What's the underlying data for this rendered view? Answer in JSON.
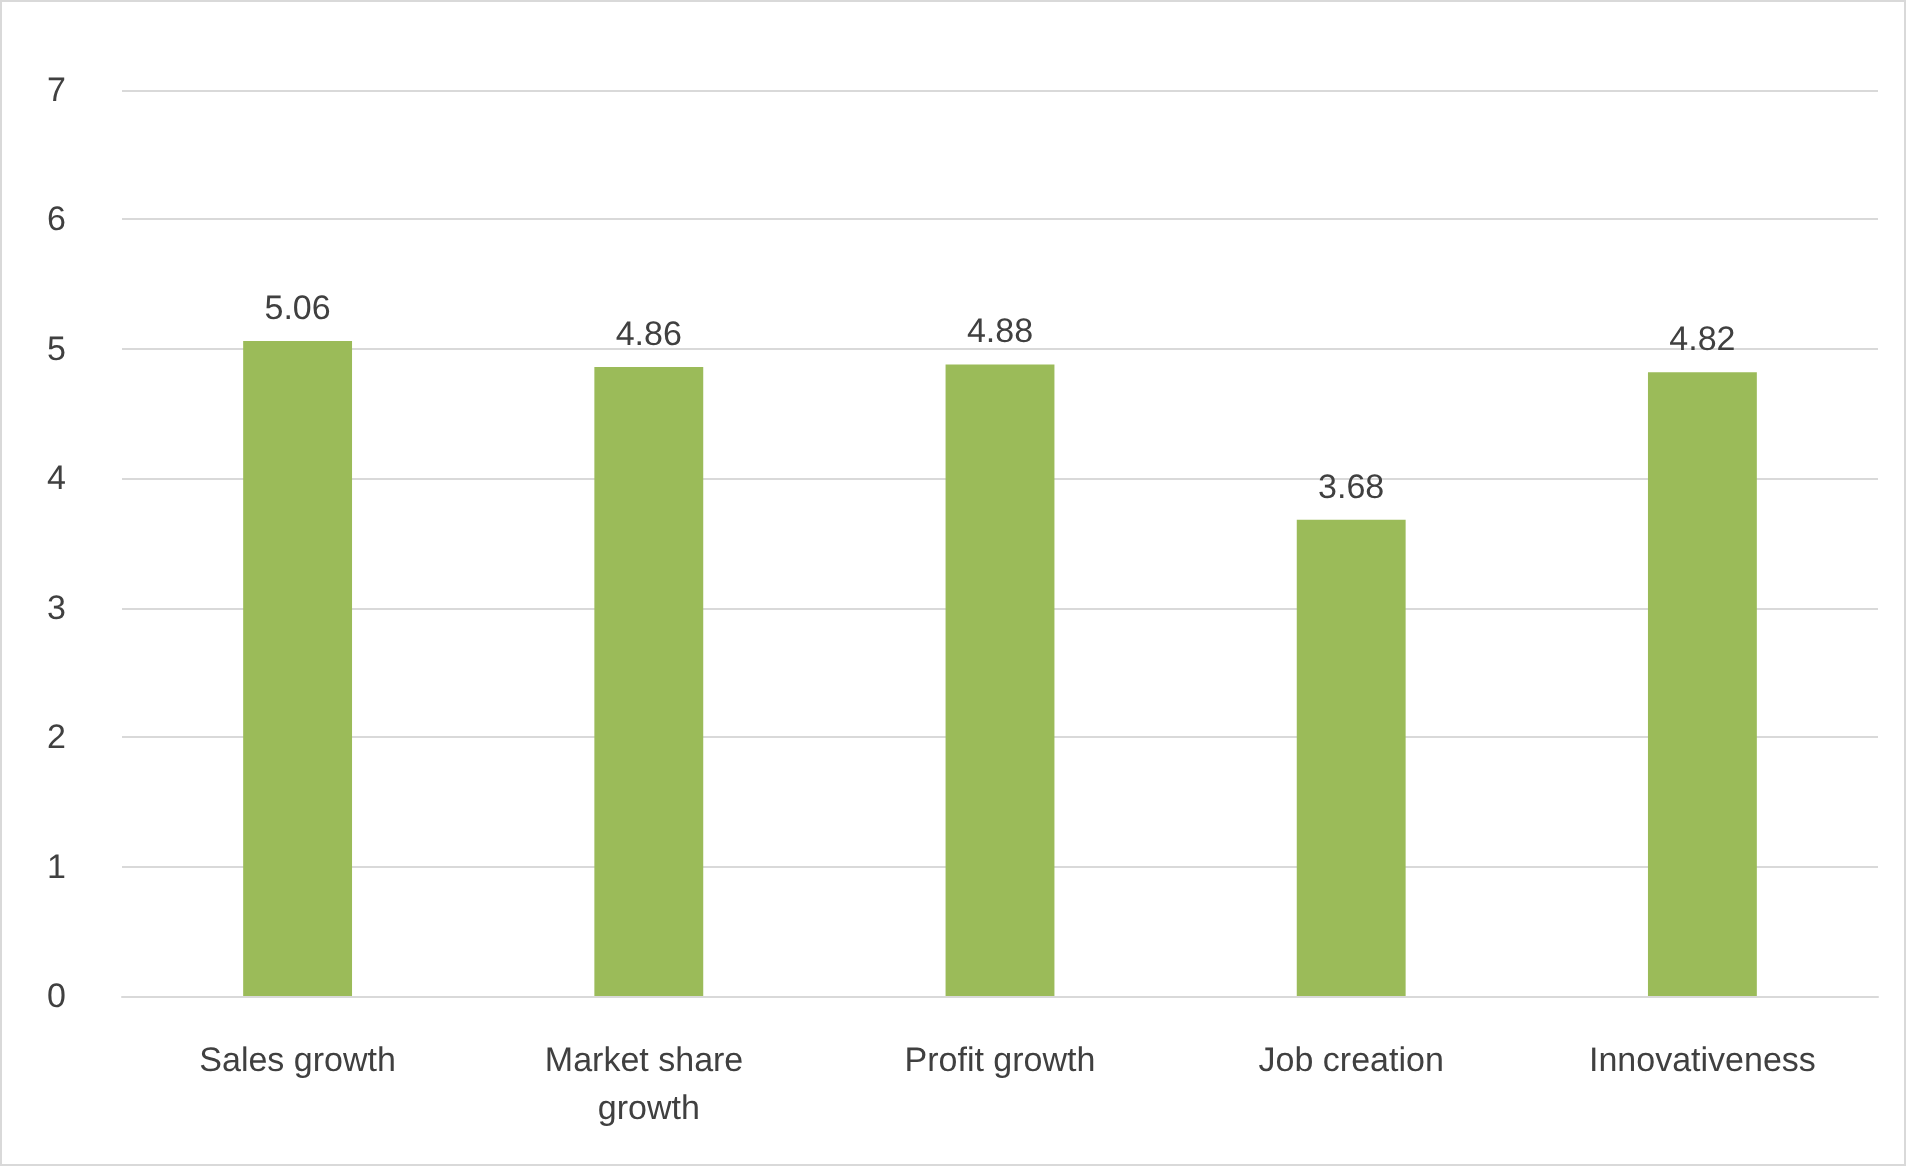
{
  "chart_data": {
    "type": "bar",
    "categories": [
      "Sales growth",
      "Market share growth",
      "Profit growth",
      "Job creation",
      "Innovativeness"
    ],
    "values": [
      5.06,
      4.86,
      4.88,
      3.68,
      4.82
    ],
    "color": "#9bbb59",
    "ylim": [
      0,
      7
    ],
    "yticks": [
      0,
      1,
      2,
      3,
      4,
      5,
      6,
      7
    ],
    "grid": "y",
    "data_labels": true
  }
}
